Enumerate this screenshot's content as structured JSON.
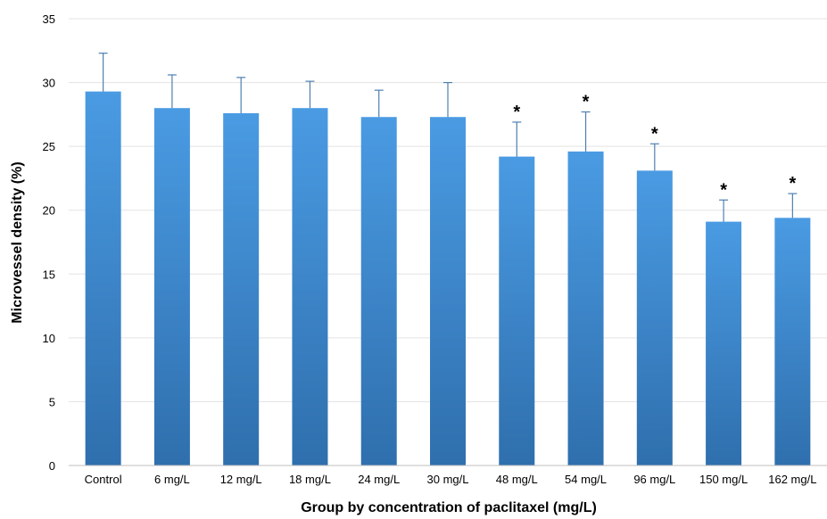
{
  "chart_data": {
    "type": "bar",
    "title": "",
    "xlabel": "Group by concentration of paclitaxel (mg/L)",
    "ylabel": "Microvessel density (%)",
    "ylim": [
      0,
      35
    ],
    "yticks": [
      0,
      5,
      10,
      15,
      20,
      25,
      30,
      35
    ],
    "grid": true,
    "legend": "none",
    "categories": [
      "Control",
      "6 mg/L",
      "12 mg/L",
      "18 mg/L",
      "24 mg/L",
      "30 mg/L",
      "48 mg/L",
      "54 mg/L",
      "96 mg/L",
      "150 mg/L",
      "162 mg/L"
    ],
    "series": [
      {
        "values": [
          29.3,
          28.0,
          27.6,
          28.0,
          27.3,
          27.3,
          24.2,
          24.6,
          23.1,
          19.1,
          19.4
        ],
        "error_plus": [
          3.0,
          2.6,
          2.8,
          2.1,
          2.1,
          2.7,
          2.7,
          3.1,
          2.1,
          1.7,
          1.9
        ]
      }
    ],
    "significance_marker": "*",
    "significant": [
      false,
      false,
      false,
      false,
      false,
      false,
      true,
      true,
      true,
      true,
      true
    ],
    "colors": {
      "bar_top": "#4A9BE3",
      "bar_bottom": "#2F6FAD",
      "error_bar": "#4F7FB0",
      "grid": "#E3E3E3",
      "axis": "#BFBFBF"
    }
  }
}
